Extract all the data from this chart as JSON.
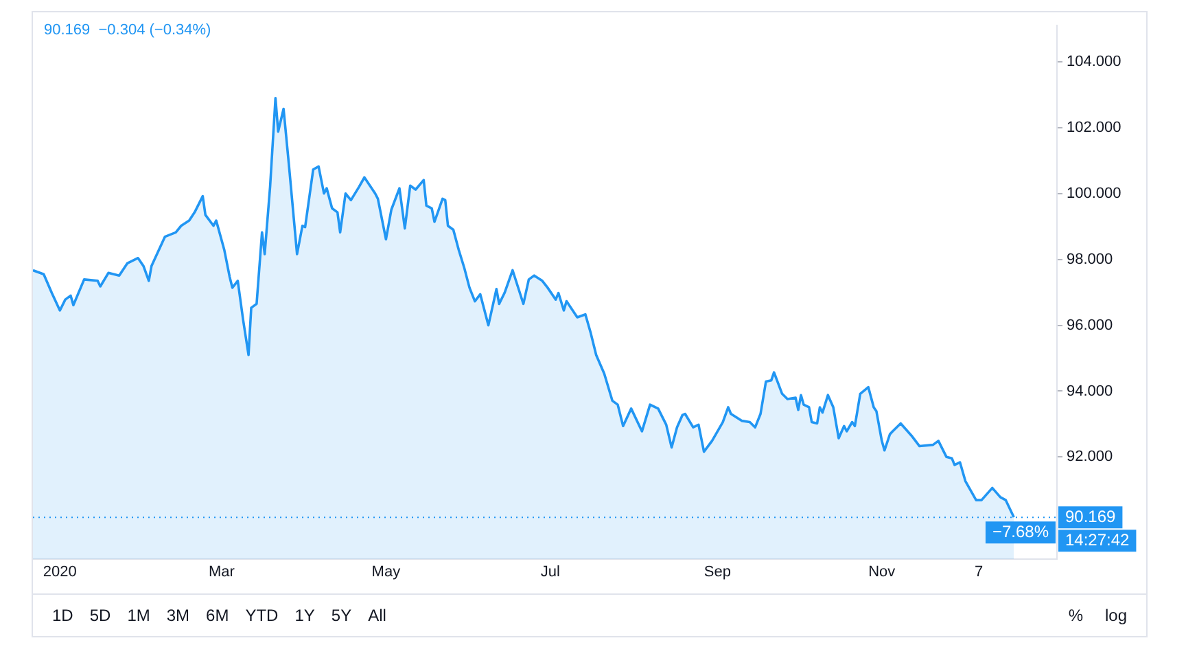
{
  "chart_data": {
    "type": "area",
    "title": "90.169  −0.304 (−0.34%)",
    "x": [
      "2019-12-22",
      "2019-12-26",
      "2019-12-29",
      "2020-01-01",
      "2020-01-03",
      "2020-01-05",
      "2020-01-06",
      "2020-01-10",
      "2020-01-15",
      "2020-01-16",
      "2020-01-19",
      "2020-01-23",
      "2020-01-26",
      "2020-01-30",
      "2020-02-01",
      "2020-02-03",
      "2020-02-04",
      "2020-02-09",
      "2020-02-13",
      "2020-02-15",
      "2020-02-18",
      "2020-02-20",
      "2020-02-23",
      "2020-02-24",
      "2020-02-27",
      "2020-02-28",
      "2020-03-02",
      "2020-03-04",
      "2020-03-05",
      "2020-03-07",
      "2020-03-09",
      "2020-03-11",
      "2020-03-12",
      "2020-03-14",
      "2020-03-16",
      "2020-03-17",
      "2020-03-19",
      "2020-03-21",
      "2020-03-22",
      "2020-03-24",
      "2020-03-26",
      "2020-03-29",
      "2020-03-31",
      "2020-04-01",
      "2020-04-04",
      "2020-04-06",
      "2020-04-08",
      "2020-04-09",
      "2020-04-11",
      "2020-04-13",
      "2020-04-14",
      "2020-04-16",
      "2020-04-18",
      "2020-04-21",
      "2020-04-23",
      "2020-04-27",
      "2020-04-28",
      "2020-05-01",
      "2020-05-03",
      "2020-05-06",
      "2020-05-08",
      "2020-05-10",
      "2020-05-12",
      "2020-05-15",
      "2020-05-16",
      "2020-05-18",
      "2020-05-19",
      "2020-05-22",
      "2020-05-23",
      "2020-05-24",
      "2020-05-26",
      "2020-05-28",
      "2020-05-30",
      "2020-06-01",
      "2020-06-03",
      "2020-06-05",
      "2020-06-08",
      "2020-06-11",
      "2020-06-12",
      "2020-06-14",
      "2020-06-17",
      "2020-06-21",
      "2020-06-23",
      "2020-06-25",
      "2020-06-28",
      "2020-06-30",
      "2020-07-03",
      "2020-07-04",
      "2020-07-06",
      "2020-07-07",
      "2020-07-11",
      "2020-07-14",
      "2020-07-16",
      "2020-07-18",
      "2020-07-21",
      "2020-07-24",
      "2020-07-26",
      "2020-07-28",
      "2020-07-31",
      "2020-08-04",
      "2020-08-07",
      "2020-08-10",
      "2020-08-13",
      "2020-08-15",
      "2020-08-17",
      "2020-08-19",
      "2020-08-20",
      "2020-08-23",
      "2020-08-25",
      "2020-08-27",
      "2020-08-30",
      "2020-09-03",
      "2020-09-05",
      "2020-09-06",
      "2020-09-10",
      "2020-09-13",
      "2020-09-15",
      "2020-09-17",
      "2020-09-19",
      "2020-09-21",
      "2020-09-22",
      "2020-09-25",
      "2020-09-27",
      "2020-09-30",
      "2020-10-01",
      "2020-10-02",
      "2020-10-03",
      "2020-10-05",
      "2020-10-06",
      "2020-10-08",
      "2020-10-09",
      "2020-10-10",
      "2020-10-12",
      "2020-10-14",
      "2020-10-16",
      "2020-10-18",
      "2020-10-19",
      "2020-10-21",
      "2020-10-22",
      "2020-10-24",
      "2020-10-27",
      "2020-10-29",
      "2020-10-30",
      "2020-11-01",
      "2020-11-02",
      "2020-11-04",
      "2020-11-05",
      "2020-11-08",
      "2020-11-12",
      "2020-11-15",
      "2020-11-20",
      "2020-11-22",
      "2020-11-25",
      "2020-11-27",
      "2020-11-28",
      "2020-11-30",
      "2020-12-02",
      "2020-12-06",
      "2020-12-08",
      "2020-12-12",
      "2020-12-15",
      "2020-12-17",
      "2020-12-20"
    ],
    "series": [
      {
        "color": "#2196f3",
        "values": [
          97.67,
          97.55,
          96.98,
          96.45,
          96.78,
          96.9,
          96.61,
          97.39,
          97.35,
          97.18,
          97.59,
          97.51,
          97.88,
          98.04,
          97.8,
          97.35,
          97.8,
          98.69,
          98.82,
          99.02,
          99.18,
          99.43,
          99.92,
          99.35,
          99.02,
          99.18,
          98.29,
          97.47,
          97.14,
          97.35,
          96.16,
          95.1,
          96.53,
          96.65,
          98.82,
          98.16,
          100.2,
          102.9,
          101.88,
          102.57,
          100.86,
          98.16,
          99.02,
          98.98,
          100.73,
          100.82,
          100.0,
          100.16,
          99.55,
          99.43,
          98.82,
          100.0,
          99.8,
          100.2,
          100.49,
          100.0,
          99.84,
          98.61,
          99.51,
          100.16,
          98.94,
          100.24,
          100.12,
          100.41,
          99.63,
          99.55,
          99.14,
          99.84,
          99.8,
          99.02,
          98.9,
          98.29,
          97.76,
          97.14,
          96.73,
          96.94,
          96.0,
          97.1,
          96.65,
          96.98,
          97.67,
          96.65,
          97.39,
          97.51,
          97.35,
          97.14,
          96.78,
          96.98,
          96.45,
          96.73,
          96.24,
          96.33,
          95.76,
          95.1,
          94.53,
          93.71,
          93.59,
          92.94,
          93.47,
          92.78,
          93.59,
          93.47,
          92.98,
          92.29,
          92.9,
          93.27,
          93.31,
          92.9,
          92.98,
          92.16,
          92.49,
          93.06,
          93.51,
          93.31,
          93.1,
          93.06,
          92.9,
          93.31,
          94.29,
          94.33,
          94.57,
          93.92,
          93.76,
          93.8,
          93.43,
          93.88,
          93.59,
          93.51,
          93.06,
          93.02,
          93.51,
          93.35,
          93.88,
          93.51,
          92.57,
          92.94,
          92.78,
          93.06,
          92.94,
          93.92,
          94.12,
          93.51,
          93.39,
          92.49,
          92.2,
          92.69,
          92.78,
          93.02,
          92.65,
          92.33,
          92.37,
          92.49,
          92.0,
          91.96,
          91.76,
          91.84,
          91.27,
          90.69,
          90.69,
          91.06,
          90.78,
          90.69,
          90.17
        ]
      }
    ],
    "xlim": [
      "2019-12-22",
      "2021-01-05"
    ],
    "xticks": [
      {
        "value": "2020-01-01",
        "label": "2020"
      },
      {
        "value": "2020-03-01",
        "label": "Mar"
      },
      {
        "value": "2020-05-01",
        "label": "May"
      },
      {
        "value": "2020-07-01",
        "label": "Jul"
      },
      {
        "value": "2020-09-01",
        "label": "Sep"
      },
      {
        "value": "2020-11-01",
        "label": "Nov"
      },
      {
        "value": "2020-12-07",
        "label": "7"
      }
    ],
    "ylim": [
      88.9,
      105.1
    ],
    "yticks": [
      {
        "value": 92,
        "label": "92.000"
      },
      {
        "value": 94,
        "label": "94.000"
      },
      {
        "value": 96,
        "label": "96.000"
      },
      {
        "value": 98,
        "label": "98.000"
      },
      {
        "value": 100,
        "label": "100.000"
      },
      {
        "value": 102,
        "label": "102.000"
      },
      {
        "value": 104,
        "label": "104.000"
      }
    ],
    "ref_lines": [
      {
        "axis": "y",
        "value": 90.169,
        "label": "90.169",
        "color": "#2196f3",
        "line_style": "dotted"
      }
    ],
    "annotations": [
      "−7.68%",
      "14:27:42",
      "1D",
      "5D",
      "1M",
      "3M",
      "6M",
      "YTD",
      "1Y",
      "5Y",
      "All",
      "%",
      "log"
    ],
    "grid": false,
    "legend": false,
    "marker": "none",
    "line_style": "solid"
  }
}
